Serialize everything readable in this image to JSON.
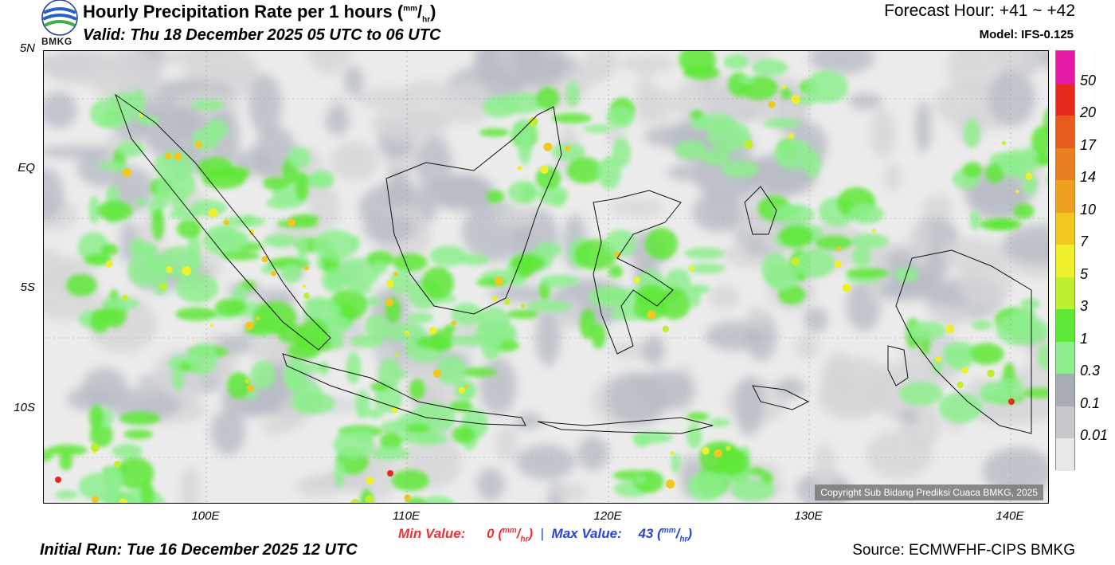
{
  "header": {
    "title": "Hourly Precipitation Rate per 1 hours",
    "title_unit_num": "mm",
    "title_unit_den": "hr",
    "valid": "Valid: Thu 18 December 2025 05 UTC to 06 UTC",
    "forecast_hour": "Forecast Hour: +41 ~ +42",
    "model": "Model: IFS-0.125",
    "logo_text": "BMKG"
  },
  "map": {
    "copyright": "Copyright Sub Bidang Prediksi Cuaca BMKG, 2025",
    "lat_ticks": [
      "5N",
      "EQ",
      "5S",
      "10S"
    ],
    "lon_ticks": [
      "100E",
      "110E",
      "120E",
      "130E",
      "140E"
    ]
  },
  "colorbar": {
    "labels": [
      "50",
      "20",
      "17",
      "14",
      "10",
      "7",
      "5",
      "3",
      "1",
      "0.3",
      "0.1",
      "0.01"
    ],
    "colors": [
      "#e61aa8",
      "#e62a1c",
      "#e65a1c",
      "#e88020",
      "#f0a020",
      "#f0c820",
      "#eef02c",
      "#c0ee30",
      "#5ee836",
      "#8eee8e",
      "#a8acb4",
      "#c8c8cc",
      "#e8e8e8"
    ]
  },
  "footer": {
    "min_label": "Min Value:",
    "min_value": "0",
    "max_label": "Max Value:",
    "max_value": "43",
    "unit_num": "mm",
    "unit_den": "hr",
    "initial_run": "Initial Run: Tue 16 December 2025 12 UTC",
    "source": "Source: ECMWFHF-CIPS BMKG"
  }
}
